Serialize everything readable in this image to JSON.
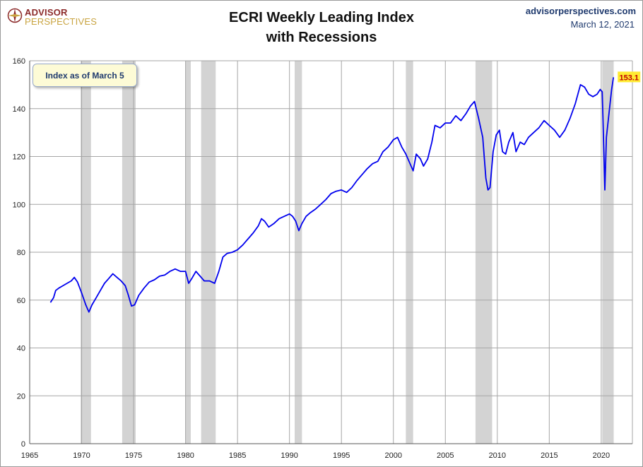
{
  "header": {
    "logo_line1": "ADVISOR",
    "logo_line2": "PERSPECTIVES",
    "title_line1": "ECRI Weekly Leading Index",
    "title_line2": "with Recessions",
    "site": "advisorperspectives.com",
    "date": "March 12, 2021"
  },
  "annotation": {
    "label": "Index as of March 5"
  },
  "colors": {
    "series": "#0000ee",
    "recession": "#d3d3d3",
    "grid": "#a6a6a6",
    "last_label_bg": "#ffeb33",
    "last_label_text": "#c00000"
  },
  "chart_data": {
    "type": "line",
    "title": "ECRI Weekly Leading Index with Recessions",
    "xlabel": "",
    "ylabel": "",
    "xlim": [
      1965,
      2023
    ],
    "ylim": [
      0,
      160
    ],
    "grid": true,
    "x_ticks": [
      "1965",
      "1970",
      "1975",
      "1980",
      "1985",
      "1990",
      "1995",
      "2000",
      "2005",
      "2010",
      "2015",
      "2020"
    ],
    "y_ticks": [
      "0",
      "20",
      "40",
      "60",
      "80",
      "100",
      "120",
      "140",
      "160"
    ],
    "recessions": [
      [
        1969.9,
        1970.9
      ],
      [
        1973.9,
        1975.2
      ],
      [
        1980.0,
        1980.5
      ],
      [
        1981.5,
        1982.9
      ],
      [
        1990.5,
        1991.2
      ],
      [
        2001.2,
        2001.9
      ],
      [
        2007.9,
        2009.5
      ],
      [
        2020.1,
        2021.2
      ]
    ],
    "last_value_label": "153.1",
    "series": [
      {
        "values": [
          [
            1967.0,
            59
          ],
          [
            1967.3,
            61
          ],
          [
            1967.5,
            64
          ],
          [
            1967.8,
            65
          ],
          [
            1968.2,
            66
          ],
          [
            1968.6,
            67
          ],
          [
            1969.0,
            68
          ],
          [
            1969.3,
            69.5
          ],
          [
            1969.6,
            67.5
          ],
          [
            1970.0,
            63
          ],
          [
            1970.4,
            58
          ],
          [
            1970.7,
            55
          ],
          [
            1971.0,
            58
          ],
          [
            1971.4,
            61
          ],
          [
            1971.8,
            64
          ],
          [
            1972.2,
            67
          ],
          [
            1972.6,
            69
          ],
          [
            1973.0,
            71
          ],
          [
            1973.4,
            69.5
          ],
          [
            1973.8,
            68
          ],
          [
            1974.2,
            66
          ],
          [
            1974.5,
            62
          ],
          [
            1974.8,
            57.5
          ],
          [
            1975.1,
            58
          ],
          [
            1975.5,
            62
          ],
          [
            1976.0,
            65
          ],
          [
            1976.5,
            67.5
          ],
          [
            1977.0,
            68.5
          ],
          [
            1977.5,
            70
          ],
          [
            1978.0,
            70.5
          ],
          [
            1978.5,
            72
          ],
          [
            1979.0,
            73
          ],
          [
            1979.5,
            72
          ],
          [
            1980.0,
            72
          ],
          [
            1980.3,
            67
          ],
          [
            1980.6,
            69
          ],
          [
            1981.0,
            72
          ],
          [
            1981.4,
            70
          ],
          [
            1981.8,
            68
          ],
          [
            1982.3,
            68
          ],
          [
            1982.8,
            67
          ],
          [
            1983.2,
            72
          ],
          [
            1983.6,
            78
          ],
          [
            1984.0,
            79.5
          ],
          [
            1984.5,
            80
          ],
          [
            1985.0,
            81
          ],
          [
            1985.5,
            83
          ],
          [
            1986.0,
            85.5
          ],
          [
            1986.5,
            88
          ],
          [
            1987.0,
            91
          ],
          [
            1987.3,
            94
          ],
          [
            1987.6,
            93
          ],
          [
            1988.0,
            90.5
          ],
          [
            1988.5,
            92
          ],
          [
            1989.0,
            94
          ],
          [
            1989.5,
            95
          ],
          [
            1990.0,
            96
          ],
          [
            1990.3,
            95
          ],
          [
            1990.6,
            93
          ],
          [
            1990.9,
            89
          ],
          [
            1991.2,
            92
          ],
          [
            1991.6,
            95
          ],
          [
            1992.0,
            96.5
          ],
          [
            1992.5,
            98
          ],
          [
            1993.0,
            100
          ],
          [
            1993.5,
            102
          ],
          [
            1994.0,
            104.5
          ],
          [
            1994.5,
            105.5
          ],
          [
            1995.0,
            106
          ],
          [
            1995.5,
            105
          ],
          [
            1996.0,
            107
          ],
          [
            1996.5,
            110
          ],
          [
            1997.0,
            112.5
          ],
          [
            1997.5,
            115
          ],
          [
            1998.0,
            117
          ],
          [
            1998.5,
            118
          ],
          [
            1999.0,
            122
          ],
          [
            1999.5,
            124
          ],
          [
            2000.0,
            127
          ],
          [
            2000.4,
            128
          ],
          [
            2000.8,
            124
          ],
          [
            2001.2,
            121
          ],
          [
            2001.6,
            117
          ],
          [
            2001.9,
            114
          ],
          [
            2002.2,
            121
          ],
          [
            2002.6,
            119
          ],
          [
            2002.9,
            116
          ],
          [
            2003.3,
            119
          ],
          [
            2003.7,
            126
          ],
          [
            2004.0,
            133
          ],
          [
            2004.5,
            132
          ],
          [
            2005.0,
            134
          ],
          [
            2005.5,
            134
          ],
          [
            2006.0,
            137
          ],
          [
            2006.5,
            135
          ],
          [
            2007.0,
            138
          ],
          [
            2007.4,
            141
          ],
          [
            2007.8,
            143
          ],
          [
            2008.2,
            136
          ],
          [
            2008.6,
            128
          ],
          [
            2008.9,
            111
          ],
          [
            2009.1,
            106
          ],
          [
            2009.3,
            107
          ],
          [
            2009.6,
            122
          ],
          [
            2009.9,
            129
          ],
          [
            2010.2,
            131
          ],
          [
            2010.5,
            122
          ],
          [
            2010.8,
            121
          ],
          [
            2011.1,
            126
          ],
          [
            2011.5,
            130
          ],
          [
            2011.8,
            122
          ],
          [
            2012.2,
            126
          ],
          [
            2012.6,
            125
          ],
          [
            2013.0,
            128
          ],
          [
            2013.5,
            130
          ],
          [
            2014.0,
            132
          ],
          [
            2014.5,
            135
          ],
          [
            2015.0,
            133
          ],
          [
            2015.5,
            131
          ],
          [
            2016.0,
            128
          ],
          [
            2016.5,
            131
          ],
          [
            2017.0,
            136
          ],
          [
            2017.5,
            142
          ],
          [
            2018.0,
            150
          ],
          [
            2018.4,
            149
          ],
          [
            2018.8,
            146
          ],
          [
            2019.2,
            145
          ],
          [
            2019.6,
            146
          ],
          [
            2019.9,
            148
          ],
          [
            2020.1,
            147
          ],
          [
            2020.25,
            122
          ],
          [
            2020.35,
            106
          ],
          [
            2020.5,
            128
          ],
          [
            2020.8,
            140
          ],
          [
            2021.0,
            148
          ],
          [
            2021.18,
            153.1
          ]
        ]
      }
    ]
  }
}
